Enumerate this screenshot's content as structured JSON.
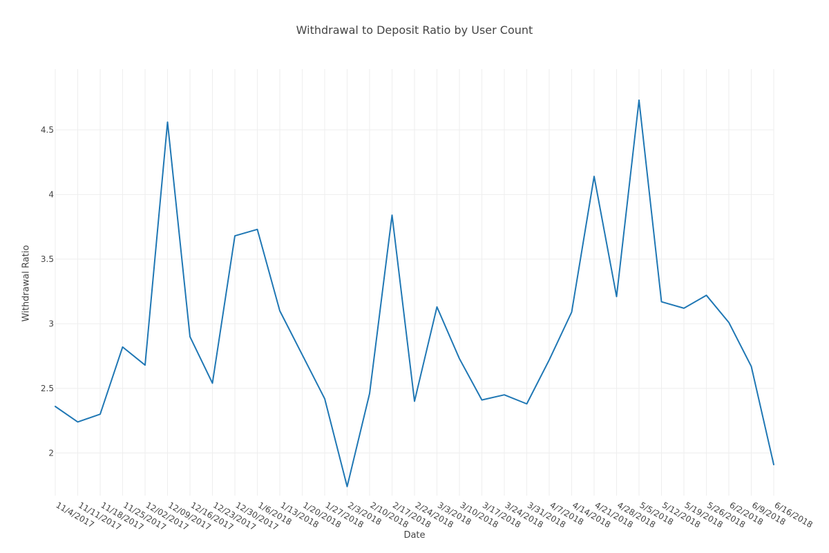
{
  "chart_data": {
    "type": "line",
    "title": "Withdrawal to Deposit Ratio by User Count",
    "xlabel": "Date",
    "ylabel": "Withdrawal Ratio",
    "x": [
      "11/4/2017",
      "11/11/2017",
      "11/18/2017",
      "11/25/2017",
      "12/02/2017",
      "12/09/2017",
      "12/16/2017",
      "12/23/2017",
      "12/30/2017",
      "1/6/2018",
      "1/13/2018",
      "1/20/2018",
      "1/27/2018",
      "2/3/2018",
      "2/10/2018",
      "2/17/2018",
      "2/24/2018",
      "3/3/2018",
      "3/10/2018",
      "3/17/2018",
      "3/24/2018",
      "3/31/2018",
      "4/7/2018",
      "4/14/2018",
      "4/21/2018",
      "4/28/2018",
      "5/5/2018",
      "5/12/2018",
      "5/19/2018",
      "5/26/2018",
      "6/2/2018",
      "6/9/2018",
      "6/16/2018"
    ],
    "series": [
      {
        "values": [
          2.36,
          2.24,
          2.3,
          2.82,
          2.68,
          4.56,
          2.9,
          2.54,
          3.68,
          3.73,
          3.1,
          2.76,
          2.42,
          1.74,
          2.46,
          3.84,
          2.4,
          3.13,
          2.73,
          2.41,
          2.45,
          2.38,
          2.72,
          3.09,
          4.14,
          3.21,
          4.73,
          3.17,
          3.12,
          3.22,
          3.01,
          2.67,
          1.91
        ],
        "color": "#1f77b4"
      }
    ],
    "yticks": [
      "2",
      "2.5",
      "3",
      "3.5",
      "4",
      "4.5"
    ],
    "ylim": [
      1.67,
      4.97
    ],
    "grid": true,
    "legend": "none"
  }
}
